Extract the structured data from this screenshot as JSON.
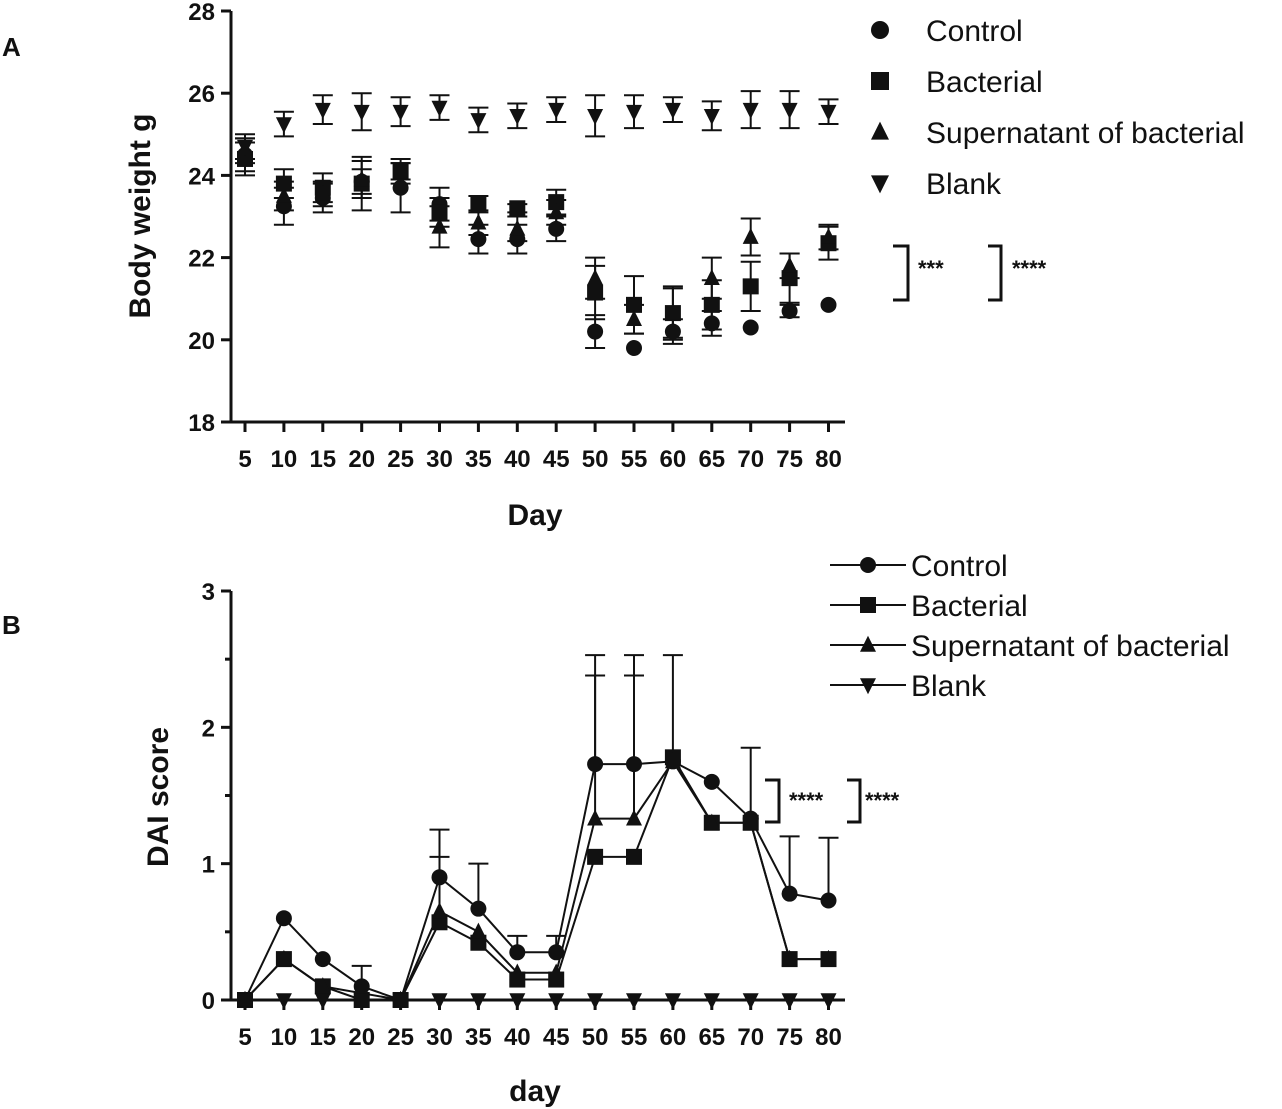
{
  "chart_data": [
    {
      "panel_label": "A",
      "type": "scatter",
      "xlabel": "Day",
      "ylabel": "Body weight g",
      "x": [
        5,
        10,
        15,
        20,
        25,
        30,
        35,
        40,
        45,
        50,
        55,
        60,
        65,
        70,
        75,
        80
      ],
      "xticks": [
        "5",
        "10",
        "15",
        "20",
        "25",
        "30",
        "35",
        "40",
        "45",
        "50",
        "55",
        "60",
        "65",
        "70",
        "75",
        "80"
      ],
      "ylim": [
        18,
        28
      ],
      "yticks": [
        "18",
        "20",
        "22",
        "24",
        "26",
        "28"
      ],
      "series": [
        {
          "name": "Control",
          "marker": "circle",
          "values": [
            24.5,
            23.25,
            23.45,
            23.85,
            23.7,
            23.3,
            22.45,
            22.45,
            22.7,
            20.2,
            19.8,
            20.2,
            20.4,
            20.3,
            20.7,
            20.85
          ],
          "err": [
            0.4,
            0.45,
            0.35,
            0.3,
            0.6,
            0.4,
            0.35,
            0.35,
            0.3,
            0.4,
            0,
            0.3,
            0.3,
            0,
            0.15,
            0
          ]
        },
        {
          "name": "Bacterial",
          "marker": "square",
          "values": [
            24.4,
            23.8,
            23.7,
            23.8,
            24.1,
            23.1,
            23.3,
            23.2,
            23.35,
            21.15,
            20.85,
            20.65,
            20.85,
            21.3,
            21.5,
            22.35
          ],
          "err": [
            0.4,
            0.35,
            0.35,
            0.65,
            0.3,
            0.35,
            0.2,
            0.1,
            0.3,
            0.65,
            0.7,
            0.6,
            0.6,
            0.6,
            0.6,
            0.4
          ]
        },
        {
          "name": "Supernatant of bacterial",
          "marker": "triangle-up",
          "values": [
            24.6,
            23.5,
            23.55,
            23.9,
            24.1,
            22.75,
            22.85,
            22.7,
            23.1,
            21.5,
            20.5,
            20.65,
            21.5,
            22.5,
            21.8,
            22.5
          ],
          "err": [
            0.3,
            0.35,
            0.3,
            0.45,
            0.2,
            0.5,
            0.3,
            0.3,
            0.3,
            0.5,
            0.35,
            0.65,
            0.5,
            0.45,
            0.3,
            0.3
          ]
        },
        {
          "name": "Blank",
          "marker": "triangle-down",
          "values": [
            24.7,
            25.25,
            25.6,
            25.55,
            25.55,
            25.65,
            25.35,
            25.45,
            25.6,
            25.45,
            25.55,
            25.6,
            25.45,
            25.6,
            25.6,
            25.55
          ],
          "err": [
            0.3,
            0.3,
            0.35,
            0.45,
            0.35,
            0.3,
            0.3,
            0.3,
            0.3,
            0.5,
            0.4,
            0.3,
            0.35,
            0.45,
            0.45,
            0.3
          ]
        }
      ],
      "legend": [
        "Control",
        "Bacterial",
        "Supernatant of bacterial",
        "Blank"
      ],
      "significance": [
        "***",
        "****"
      ]
    },
    {
      "panel_label": "B",
      "type": "line",
      "xlabel": "day",
      "ylabel": "DAI score",
      "x": [
        5,
        10,
        15,
        20,
        25,
        30,
        35,
        40,
        45,
        50,
        55,
        60,
        65,
        70,
        75,
        80
      ],
      "xticks": [
        "5",
        "10",
        "15",
        "20",
        "25",
        "30",
        "35",
        "40",
        "45",
        "50",
        "55",
        "60",
        "65",
        "70",
        "75",
        "80"
      ],
      "ylim": [
        0,
        3
      ],
      "yticks": [
        "0",
        "1",
        "2",
        "3"
      ],
      "series": [
        {
          "name": "Control",
          "marker": "circle",
          "values": [
            0,
            0.6,
            0.3,
            0.1,
            0,
            0.9,
            0.67,
            0.35,
            0.35,
            1.73,
            1.73,
            1.75,
            1.6,
            1.33,
            0.78,
            0.73
          ],
          "err": [
            0,
            0,
            0,
            0.15,
            0,
            0.35,
            0.33,
            0.12,
            0.12,
            0.8,
            0.8,
            0.78,
            0,
            0.52,
            0.42,
            0.46
          ]
        },
        {
          "name": "Bacterial",
          "marker": "square",
          "values": [
            0,
            0.3,
            0.1,
            0,
            0,
            0.57,
            0.42,
            0.15,
            0.15,
            1.05,
            1.05,
            1.78,
            1.3,
            1.3,
            0.3,
            0.3
          ],
          "err": [
            0,
            0,
            0,
            0,
            0,
            0,
            0,
            0,
            0,
            0,
            0,
            0,
            0,
            0,
            0,
            0
          ]
        },
        {
          "name": "Supernatant of bacterial",
          "marker": "triangle-up",
          "values": [
            0,
            0.3,
            0.1,
            0.05,
            0,
            0.65,
            0.5,
            0.2,
            0.2,
            1.33,
            1.33,
            1.75,
            1.3,
            1.3,
            0.3,
            0.3
          ],
          "err": [
            0,
            0,
            0,
            0,
            0,
            0.4,
            0,
            0,
            0,
            1.05,
            1.05,
            0,
            0,
            0,
            0,
            0
          ]
        },
        {
          "name": "Blank",
          "marker": "triangle-down",
          "values": [
            0,
            0,
            0,
            0,
            0,
            0,
            0,
            0,
            0,
            0,
            0,
            0,
            0,
            0,
            0,
            0
          ],
          "err": [
            0,
            0,
            0,
            0,
            0,
            0,
            0,
            0,
            0,
            0,
            0,
            0,
            0,
            0,
            0,
            0
          ]
        }
      ],
      "legend": [
        "Control",
        "Bacterial",
        "Supernatant of bacterial",
        "Blank"
      ],
      "significance": [
        "****",
        "****"
      ]
    }
  ]
}
